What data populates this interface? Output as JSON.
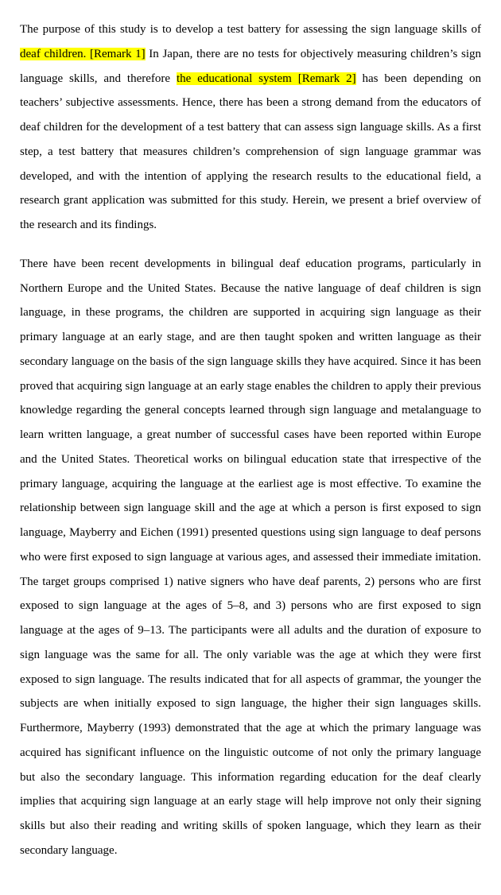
{
  "highlight_color": "#ffff00",
  "para1": {
    "t1": "The purpose of this study is to develop a test battery for assessing the sign language skills of ",
    "h1": "deaf children. [Remark 1]",
    "t2": " In Japan, there are no tests for objectively measuring children’s sign language skills, and therefore ",
    "h2": "the educational system [Remark 2]",
    "t3": " has been depending on teachers’ subjective assessments. Hence, there has been a strong demand from the educators of deaf children for the development of a test battery that can assess sign language skills. As a first step, a test battery that measures children’s comprehension of sign language grammar was developed, and with the intention of applying the research results to the educational field, a research grant application was submitted for this study. Herein, we present a brief overview of the research and its findings."
  },
  "para2": "There have been recent developments in bilingual deaf education programs, particularly in Northern Europe and the United States. Because the native language of deaf children is sign language, in these programs, the children are supported in acquiring sign language as their primary language at an early stage, and are then taught spoken and written language as their secondary language on the basis of the sign language skills they have acquired. Since it has been proved that acquiring sign language at an early stage enables the children to apply their previous knowledge regarding the general concepts learned through sign language and metalanguage to learn written language, a great number of successful cases have been reported within Europe and the United States. Theoretical works on bilingual education state that irrespective of the primary language, acquiring the language at the earliest age is most effective. To examine the relationship between sign language skill and the age at which a person is first exposed to sign language, Mayberry and Eichen (1991) presented questions using sign language to deaf persons who were first exposed to sign language at various ages, and assessed their immediate imitation. The target groups comprised 1) native signers who have deaf parents, 2) persons who are first exposed to sign language at the ages of 5–8, and 3) persons who are first exposed to sign language at the ages of 9–13. The participants were all adults and the duration of exposure to sign language was the same for all. The only variable was the age at which they were first exposed to sign language. The results indicated that for all aspects of grammar, the younger the subjects are when initially exposed to sign language, the higher their sign languages skills. Furthermore, Mayberry (1993) demonstrated that the age at which the primary language was acquired has significant influence on the linguistic outcome of not only the primary language but also the secondary language. This information regarding education for the deaf clearly implies that acquiring sign language at an early stage will help improve not only their signing skills but also their reading and writing skills of spoken language, which they learn as their secondary language."
}
